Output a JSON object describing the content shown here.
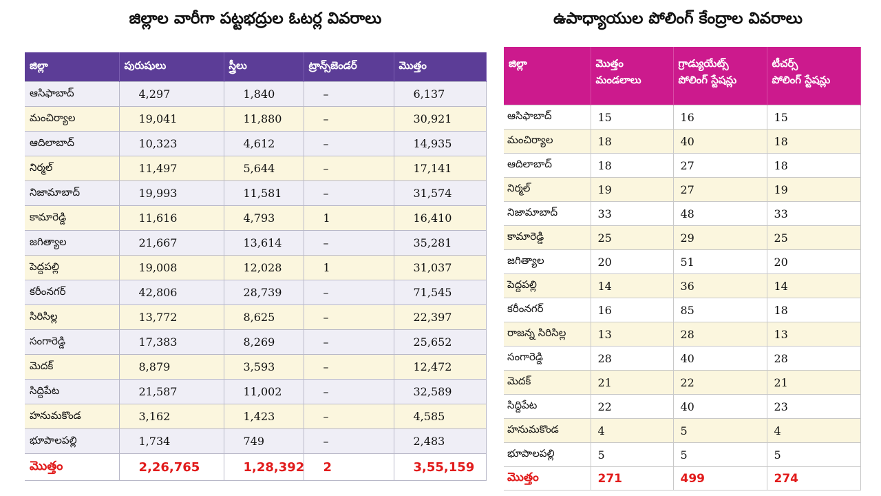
{
  "graduates": {
    "title": "జిల్లాల వారీగా పట్టభద్రుల ఓటర్ల వివరాలు",
    "headers": [
      "జిల్లా",
      "పురుషులు",
      "స్త్రీలు",
      "ట్రాన్స్‌జెండర్",
      "మొత్తం"
    ],
    "rows": [
      [
        "ఆసిఫాబాద్",
        "4,297",
        "1,840",
        "–",
        "6,137"
      ],
      [
        "మంచిర్యాల",
        "19,041",
        "11,880",
        "–",
        "30,921"
      ],
      [
        "ఆదిలాబాద్",
        "10,323",
        "4,612",
        "–",
        "14,935"
      ],
      [
        "నిర్మల్",
        "11,497",
        "5,644",
        "–",
        "17,141"
      ],
      [
        "నిజామాబాద్",
        "19,993",
        "11,581",
        "–",
        "31,574"
      ],
      [
        "కామారెడ్డి",
        "11,616",
        "4,793",
        "1",
        "16,410"
      ],
      [
        "జగిత్యాల",
        "21,667",
        "13,614",
        "–",
        "35,281"
      ],
      [
        "పెద్దపల్లి",
        "19,008",
        "12,028",
        "1",
        "31,037"
      ],
      [
        "కరీంనగర్",
        "42,806",
        "28,739",
        "–",
        "71,545"
      ],
      [
        "సిరిసిల్ల",
        "13,772",
        "8,625",
        "–",
        "22,397"
      ],
      [
        "సంగారెడ్డి",
        "17,383",
        "8,269",
        "–",
        "25,652"
      ],
      [
        "మెదక్",
        "8,879",
        "3,593",
        "–",
        "12,472"
      ],
      [
        "సిద్దిపేట",
        "21,587",
        "11,002",
        "–",
        "32,589"
      ],
      [
        "హనుమకొండ",
        "3,162",
        "1,423",
        "–",
        "4,585"
      ],
      [
        "భూపాలపల్లి",
        "1,734",
        "749",
        "–",
        "2,483"
      ]
    ],
    "total": [
      "మొత్తం",
      "2,26,765",
      "1,28,392",
      "2",
      "3,55,159"
    ]
  },
  "teachers": {
    "title": "ఉపాధ్యాయుల పోలింగ్ కేంద్రాల వివరాలు",
    "headers": [
      [
        "జిల్లా"
      ],
      [
        "మొత్తం",
        "మండలాలు"
      ],
      [
        "గ్రాడ్యుయేట్స్",
        "పోలింగ్ స్టేషన్లు"
      ],
      [
        "టీచర్స్",
        "పోలింగ్ స్టేషన్లు"
      ]
    ],
    "rows": [
      [
        "ఆసిఫాబాద్",
        "15",
        "16",
        "15"
      ],
      [
        "మంచిర్యాల",
        "18",
        "40",
        "18"
      ],
      [
        "ఆదిలాబాద్",
        "18",
        "27",
        "18"
      ],
      [
        "నిర్మల్",
        "19",
        "27",
        "19"
      ],
      [
        "నిజామాబాద్",
        "33",
        "48",
        "33"
      ],
      [
        "కామారెడ్డి",
        "25",
        "29",
        "25"
      ],
      [
        "జగిత్యాల",
        "20",
        "51",
        "20"
      ],
      [
        "పెద్దపల్లి",
        "14",
        "36",
        "14"
      ],
      [
        "కరీంనగర్",
        "16",
        "85",
        "18"
      ],
      [
        "రాజన్న సిరిసిల్ల",
        "13",
        "28",
        "13"
      ],
      [
        "సంగారెడ్డి",
        "28",
        "40",
        "28"
      ],
      [
        "మెదక్",
        "21",
        "22",
        "21"
      ],
      [
        "సిద్దిపేట",
        "22",
        "40",
        "23"
      ],
      [
        "హనుమకొండ",
        "4",
        "5",
        "4"
      ],
      [
        "భూపాలపల్లి",
        "5",
        "5",
        "5"
      ]
    ],
    "total": [
      "మొత్తం",
      "271",
      "499",
      "274"
    ]
  },
  "colors": {
    "graduates_header": "#5c3d97",
    "teachers_header": "#cc1a8d",
    "total_text": "#e11b1b"
  }
}
